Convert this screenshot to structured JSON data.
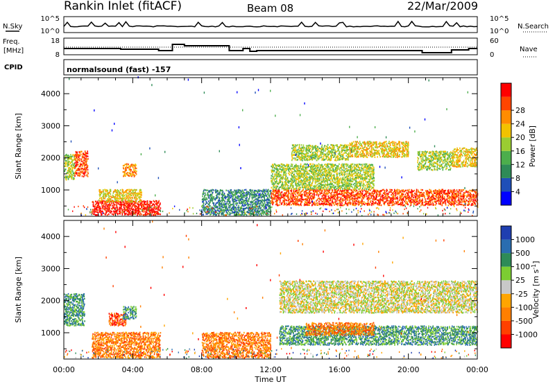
{
  "header": {
    "title": "Rankin Inlet (fitACF)",
    "beam": "Beam 08",
    "date": "22/Mar/2009"
  },
  "strip": {
    "nsky_label": "N.Sky",
    "nsearch_label": "N.Search",
    "nsky_ticks": [
      "10^5",
      "10^0"
    ],
    "nsearch_ticks": [
      "10^5",
      "10^0"
    ],
    "freq_label_1": "Freq.",
    "freq_label_2": "[MHz]",
    "freq_ticks": [
      "18",
      "8"
    ],
    "nave_label": "Nave",
    "nave_ticks": [
      "60",
      "0"
    ],
    "cpid_label": "CPID",
    "cpid_text": "normalsound (fast) -157"
  },
  "x_axis": {
    "label": "Time UT",
    "ticks": [
      "00:00",
      "04:00",
      "08:00",
      "12:00",
      "16:00",
      "20:00",
      "00:00"
    ]
  },
  "colors": {
    "power": [
      "#0000ff",
      "#1f4fb8",
      "#2e8b57",
      "#4cae4c",
      "#9acd32",
      "#f2c200",
      "#ff8c00",
      "#ff4500",
      "#ff0000"
    ],
    "velocity": [
      "#1f3fb0",
      "#2a6db0",
      "#2e8b57",
      "#7ccd32",
      "#c8c8c8",
      "#ffa500",
      "#ff7f00",
      "#ff4000",
      "#ff0000"
    ]
  },
  "chart_data": [
    {
      "type": "heatmap",
      "name": "power-panel",
      "xlabel": "",
      "ylabel": "Slant Range [km]",
      "xlim": [
        0,
        24
      ],
      "ylim": [
        180,
        4500
      ],
      "yticks": [
        "1000",
        "2000",
        "3000",
        "4000"
      ],
      "colorbar_label": "Power [dB]",
      "colorbar_ticks": [
        "4",
        "8",
        "12",
        "16",
        "20",
        "24",
        "28"
      ],
      "regions": [
        {
          "t0": 0.0,
          "t1": 0.6,
          "r0": 1300,
          "r1": 2100,
          "level": 4
        },
        {
          "t0": 0.6,
          "t1": 1.4,
          "r0": 1400,
          "r1": 2200,
          "level": 7
        },
        {
          "t0": 1.6,
          "t1": 5.6,
          "r0": 200,
          "r1": 650,
          "level": 8
        },
        {
          "t0": 2.0,
          "t1": 4.5,
          "r0": 600,
          "r1": 1000,
          "level": 5
        },
        {
          "t0": 3.4,
          "t1": 4.2,
          "r0": 1400,
          "r1": 1800,
          "level": 6
        },
        {
          "t0": 8.0,
          "t1": 12.0,
          "r0": 200,
          "r1": 1000,
          "level": 2
        },
        {
          "t0": 12.0,
          "t1": 24.0,
          "r0": 500,
          "r1": 1000,
          "level": 7
        },
        {
          "t0": 12.0,
          "t1": 18.0,
          "r0": 1000,
          "r1": 1800,
          "level": 4
        },
        {
          "t0": 13.2,
          "t1": 16.5,
          "r0": 1900,
          "r1": 2400,
          "level": 4
        },
        {
          "t0": 16.5,
          "t1": 20.0,
          "r0": 2000,
          "r1": 2500,
          "level": 5
        },
        {
          "t0": 20.5,
          "t1": 22.5,
          "r0": 1600,
          "r1": 2200,
          "level": 4
        },
        {
          "t0": 22.5,
          "t1": 24.0,
          "r0": 1700,
          "r1": 2300,
          "level": 5
        }
      ]
    },
    {
      "type": "heatmap",
      "name": "velocity-panel",
      "xlabel": "Time UT",
      "ylabel": "Slant Range [km]",
      "xlim": [
        0,
        24
      ],
      "ylim": [
        180,
        4500
      ],
      "yticks": [
        "1000",
        "2000",
        "3000",
        "4000"
      ],
      "colorbar_label": "Velocity [m s^-1]",
      "colorbar_ticks": [
        "1000",
        "500",
        "100",
        "25",
        "-25",
        "-100",
        "-500",
        "-1000"
      ],
      "regions": [
        {
          "t0": 0.0,
          "t1": 1.2,
          "r0": 1200,
          "r1": 2200,
          "level": 6
        },
        {
          "t0": 1.6,
          "t1": 5.6,
          "r0": 200,
          "r1": 1000,
          "level": 2
        },
        {
          "t0": 2.6,
          "t1": 3.6,
          "r0": 1200,
          "r1": 1600,
          "level": 1
        },
        {
          "t0": 3.4,
          "t1": 4.2,
          "r0": 1400,
          "r1": 1800,
          "level": 6
        },
        {
          "t0": 8.0,
          "t1": 12.0,
          "r0": 200,
          "r1": 1000,
          "level": 2
        },
        {
          "t0": 12.5,
          "t1": 24.0,
          "r0": 600,
          "r1": 1200,
          "level": 6
        },
        {
          "t0": 14.0,
          "t1": 18.0,
          "r0": 900,
          "r1": 1300,
          "level": 2
        },
        {
          "t0": 12.5,
          "t1": 24.0,
          "r0": 1600,
          "r1": 2600,
          "level": 4
        }
      ]
    }
  ]
}
